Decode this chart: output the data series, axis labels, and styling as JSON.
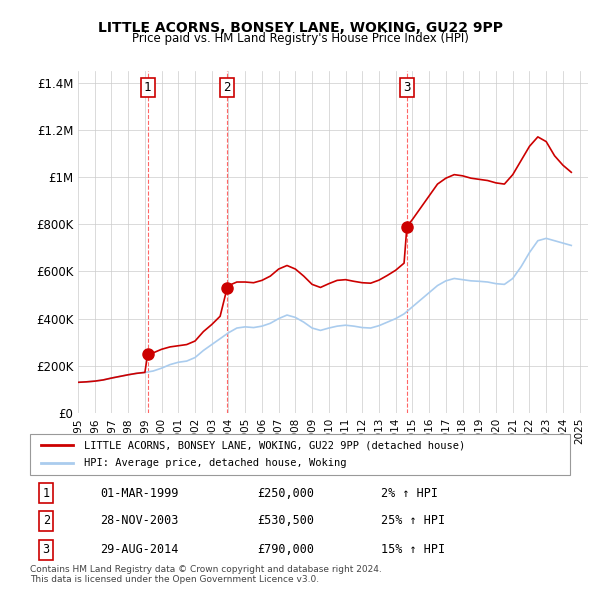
{
  "title": "LITTLE ACORNS, BONSEY LANE, WOKING, GU22 9PP",
  "subtitle": "Price paid vs. HM Land Registry's House Price Index (HPI)",
  "ylabel_ticks": [
    "£0",
    "£200K",
    "£400K",
    "£600K",
    "£800K",
    "£1M",
    "£1.2M",
    "£1.4M"
  ],
  "ytick_values": [
    0,
    200000,
    400000,
    600000,
    800000,
    1000000,
    1200000,
    1400000
  ],
  "ylim": [
    0,
    1450000
  ],
  "xlim_start": 1995.0,
  "xlim_end": 2025.5,
  "grid_color": "#cccccc",
  "vline_color": "#ff6666",
  "hpi_color": "#aaccee",
  "price_color": "#cc0000",
  "sale_marker_color": "#cc0000",
  "sale_marker_size": 8,
  "legend_label_price": "LITTLE ACORNS, BONSEY LANE, WOKING, GU22 9PP (detached house)",
  "legend_label_hpi": "HPI: Average price, detached house, Woking",
  "transactions": [
    {
      "num": 1,
      "date": "01-MAR-1999",
      "price": 250000,
      "pct": "2%",
      "x": 1999.17
    },
    {
      "num": 2,
      "date": "28-NOV-2003",
      "price": 530500,
      "pct": "25%",
      "x": 2003.92
    },
    {
      "num": 3,
      "date": "29-AUG-2014",
      "price": 790000,
      "pct": "15%",
      "x": 2014.67
    }
  ],
  "footer": "Contains HM Land Registry data © Crown copyright and database right 2024.\nThis data is licensed under the Open Government Licence v3.0.",
  "hpi_data": {
    "x": [
      1995.0,
      1995.5,
      1996.0,
      1996.5,
      1997.0,
      1997.5,
      1998.0,
      1998.5,
      1999.0,
      1999.5,
      2000.0,
      2000.5,
      2001.0,
      2001.5,
      2002.0,
      2002.5,
      2003.0,
      2003.5,
      2004.0,
      2004.5,
      2005.0,
      2005.5,
      2006.0,
      2006.5,
      2007.0,
      2007.5,
      2008.0,
      2008.5,
      2009.0,
      2009.5,
      2010.0,
      2010.5,
      2011.0,
      2011.5,
      2012.0,
      2012.5,
      2013.0,
      2013.5,
      2014.0,
      2014.5,
      2015.0,
      2015.5,
      2016.0,
      2016.5,
      2017.0,
      2017.5,
      2018.0,
      2018.5,
      2019.0,
      2019.5,
      2020.0,
      2020.5,
      2021.0,
      2021.5,
      2022.0,
      2022.5,
      2023.0,
      2023.5,
      2024.0,
      2024.5
    ],
    "y": [
      130000,
      132000,
      135000,
      140000,
      148000,
      155000,
      162000,
      168000,
      172000,
      178000,
      190000,
      205000,
      215000,
      220000,
      235000,
      265000,
      290000,
      315000,
      340000,
      360000,
      365000,
      362000,
      368000,
      380000,
      400000,
      415000,
      405000,
      385000,
      360000,
      350000,
      360000,
      368000,
      372000,
      368000,
      362000,
      360000,
      370000,
      385000,
      400000,
      420000,
      450000,
      480000,
      510000,
      540000,
      560000,
      570000,
      565000,
      560000,
      558000,
      555000,
      548000,
      545000,
      570000,
      620000,
      680000,
      730000,
      740000,
      730000,
      720000,
      710000
    ]
  },
  "price_data": {
    "x": [
      1995.0,
      1995.5,
      1996.0,
      1996.5,
      1997.0,
      1997.5,
      1998.0,
      1998.5,
      1999.0,
      1999.17,
      1999.5,
      2000.0,
      2000.5,
      2001.0,
      2001.5,
      2002.0,
      2002.5,
      2003.0,
      2003.5,
      2003.92,
      2004.0,
      2004.5,
      2005.0,
      2005.5,
      2006.0,
      2006.5,
      2007.0,
      2007.5,
      2008.0,
      2008.5,
      2009.0,
      2009.5,
      2010.0,
      2010.5,
      2011.0,
      2011.5,
      2012.0,
      2012.5,
      2013.0,
      2013.5,
      2014.0,
      2014.5,
      2014.67,
      2015.0,
      2015.5,
      2016.0,
      2016.5,
      2017.0,
      2017.5,
      2018.0,
      2018.5,
      2019.0,
      2019.5,
      2020.0,
      2020.5,
      2021.0,
      2021.5,
      2022.0,
      2022.5,
      2023.0,
      2023.5,
      2024.0,
      2024.5
    ],
    "y": [
      130000,
      132000,
      135000,
      140000,
      148000,
      155000,
      162000,
      168000,
      172000,
      250000,
      255000,
      270000,
      280000,
      285000,
      290000,
      305000,
      345000,
      375000,
      410000,
      530500,
      540000,
      555000,
      555000,
      552000,
      562000,
      580000,
      610000,
      625000,
      610000,
      580000,
      545000,
      532000,
      548000,
      562000,
      565000,
      558000,
      552000,
      550000,
      563000,
      583000,
      605000,
      635000,
      790000,
      820000,
      870000,
      920000,
      970000,
      995000,
      1010000,
      1005000,
      995000,
      990000,
      985000,
      975000,
      970000,
      1010000,
      1070000,
      1130000,
      1170000,
      1150000,
      1090000,
      1050000,
      1020000
    ]
  }
}
